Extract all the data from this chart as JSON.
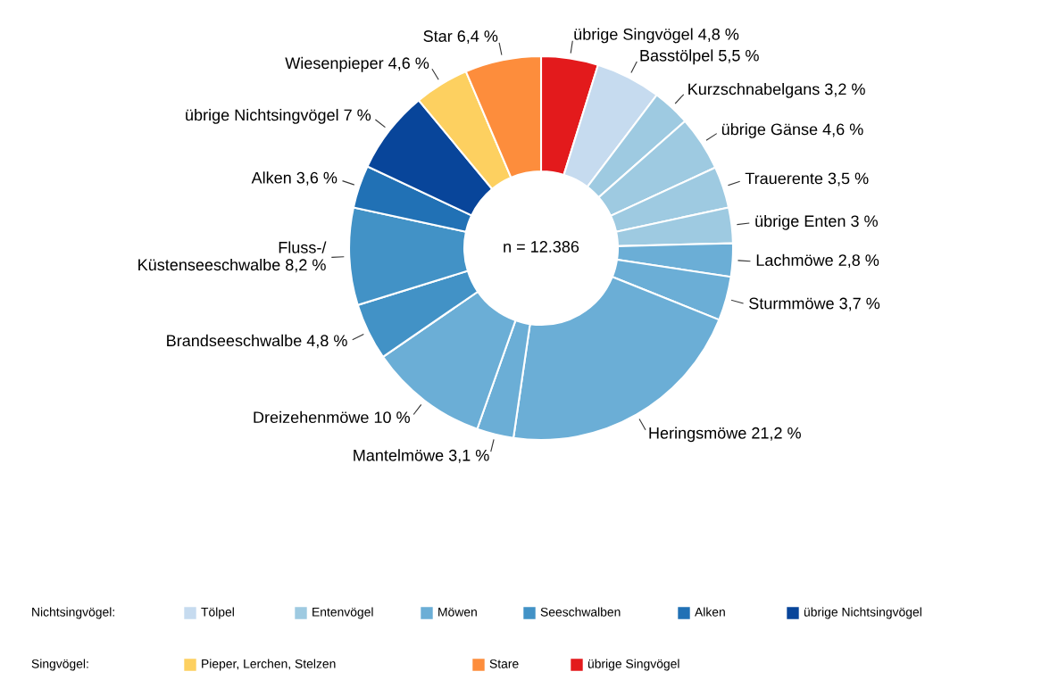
{
  "chart_data": {
    "type": "donut",
    "categories": [
      "übrige Singvögel",
      "Basstölpel",
      "Kurzschnabelgans",
      "übrige Gänse",
      "Trauerente",
      "übrige Enten",
      "Lachmöwe",
      "Sturmmöwe",
      "Heringsmöwe",
      "Mantelmöwe",
      "Dreizehenmöwe",
      "Brandseeschwalbe",
      "Fluss-/\nKüstenseeschwalbe",
      "Alken",
      "übrige Nichtsingvögel",
      "Wiesenpieper",
      "Star"
    ],
    "values": [
      4.8,
      5.5,
      3.2,
      4.6,
      3.5,
      3,
      2.8,
      3.7,
      21.2,
      3.1,
      10,
      4.8,
      8.2,
      3.6,
      7,
      4.6,
      6.4
    ],
    "value_labels": [
      "4,8 %",
      "5,5 %",
      "3,2 %",
      "4,6 %",
      "3,5 %",
      "3 %",
      "2,8 %",
      "3,7 %",
      "21,2 %",
      "3,1 %",
      "10 %",
      "4,8 %",
      "8,2 %",
      "3,6 %",
      "7 %",
      "4,6 %",
      "6,4 %"
    ],
    "colors": [
      "#e31a1c",
      "#c6dbef",
      "#9ecae1",
      "#9ecae1",
      "#9ecae1",
      "#9ecae1",
      "#6baed6",
      "#6baed6",
      "#6baed6",
      "#6baed6",
      "#6baed6",
      "#4292c6",
      "#4292c6",
      "#2171b5",
      "#08459a",
      "#fdd060",
      "#fd8d3c"
    ],
    "annotations": [
      "n = 12.386",
      "Nichtsingvögel:",
      "Tölpel",
      "Entenvögel",
      "Möwen",
      "Seeschwalben",
      "Alken",
      "übrige Nichtsingvögel",
      "Singvögel:",
      "Pieper, Lerchen, Stelzen",
      "Stare",
      "übrige Singvögel"
    ],
    "legend": "bottom"
  }
}
